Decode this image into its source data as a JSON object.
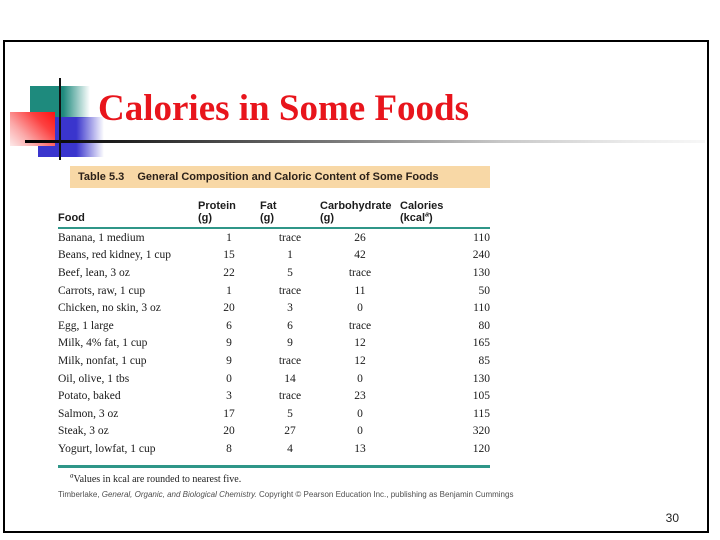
{
  "slide": {
    "title": "Calories in Some Foods",
    "page_number": "30"
  },
  "table": {
    "caption": {
      "label": "Table 5.3",
      "title": "General Composition and Caloric Content of Some Foods"
    },
    "headers": {
      "food": "Food",
      "protein": "Protein",
      "protein_unit": "(g)",
      "fat": "Fat",
      "fat_unit": "(g)",
      "carbohydrate": "Carbohydrate",
      "carbohydrate_unit": "(g)",
      "calories": "Calories",
      "calories_unit_prefix": "(kcal",
      "calories_unit_sup": "a",
      "calories_unit_suffix": ")"
    },
    "rows": [
      {
        "food": "Banana, 1 medium",
        "protein_g": "1",
        "fat_g": "trace",
        "carbohydrate_g": "26",
        "calories": "110"
      },
      {
        "food": "Beans, red kidney, 1 cup",
        "protein_g": "15",
        "fat_g": "1",
        "carbohydrate_g": "42",
        "calories": "240"
      },
      {
        "food": "Beef, lean, 3 oz",
        "protein_g": "22",
        "fat_g": "5",
        "carbohydrate_g": "trace",
        "calories": "130"
      },
      {
        "food": "Carrots, raw, 1 cup",
        "protein_g": "1",
        "fat_g": "trace",
        "carbohydrate_g": "11",
        "calories": "50"
      },
      {
        "food": "Chicken, no skin, 3 oz",
        "protein_g": "20",
        "fat_g": "3",
        "carbohydrate_g": "0",
        "calories": "110"
      },
      {
        "food": "Egg, 1 large",
        "protein_g": "6",
        "fat_g": "6",
        "carbohydrate_g": "trace",
        "calories": "80"
      },
      {
        "food": "Milk, 4% fat, 1 cup",
        "protein_g": "9",
        "fat_g": "9",
        "carbohydrate_g": "12",
        "calories": "165"
      },
      {
        "food": "Milk, nonfat, 1 cup",
        "protein_g": "9",
        "fat_g": "trace",
        "carbohydrate_g": "12",
        "calories": "85"
      },
      {
        "food": "Oil, olive, 1 tbs",
        "protein_g": "0",
        "fat_g": "14",
        "carbohydrate_g": "0",
        "calories": "130"
      },
      {
        "food": "Potato, baked",
        "protein_g": "3",
        "fat_g": "trace",
        "carbohydrate_g": "23",
        "calories": "105"
      },
      {
        "food": "Salmon, 3 oz",
        "protein_g": "17",
        "fat_g": "5",
        "carbohydrate_g": "0",
        "calories": "115"
      },
      {
        "food": "Steak, 3 oz",
        "protein_g": "20",
        "fat_g": "27",
        "carbohydrate_g": "0",
        "calories": "320"
      },
      {
        "food": "Yogurt, lowfat, 1 cup",
        "protein_g": "8",
        "fat_g": "4",
        "carbohydrate_g": "13",
        "calories": "120"
      }
    ],
    "footnote": {
      "marker": "a",
      "text": "Values in kcal are rounded to nearest five."
    },
    "credit": {
      "author": "Timberlake, ",
      "book_italic": "General, Organic, and Biological Chemistry.",
      "rest": "  Copyright © Pearson Education Inc., publishing as Benjamin Cummings"
    }
  },
  "colors": {
    "title_red": "#e8151c",
    "teal_line": "#2f9688",
    "band_tan": "#f8d8a6",
    "square_teal": "#1e8a7d",
    "square_blue": "#3a35cd",
    "square_red": "#ff1212"
  }
}
